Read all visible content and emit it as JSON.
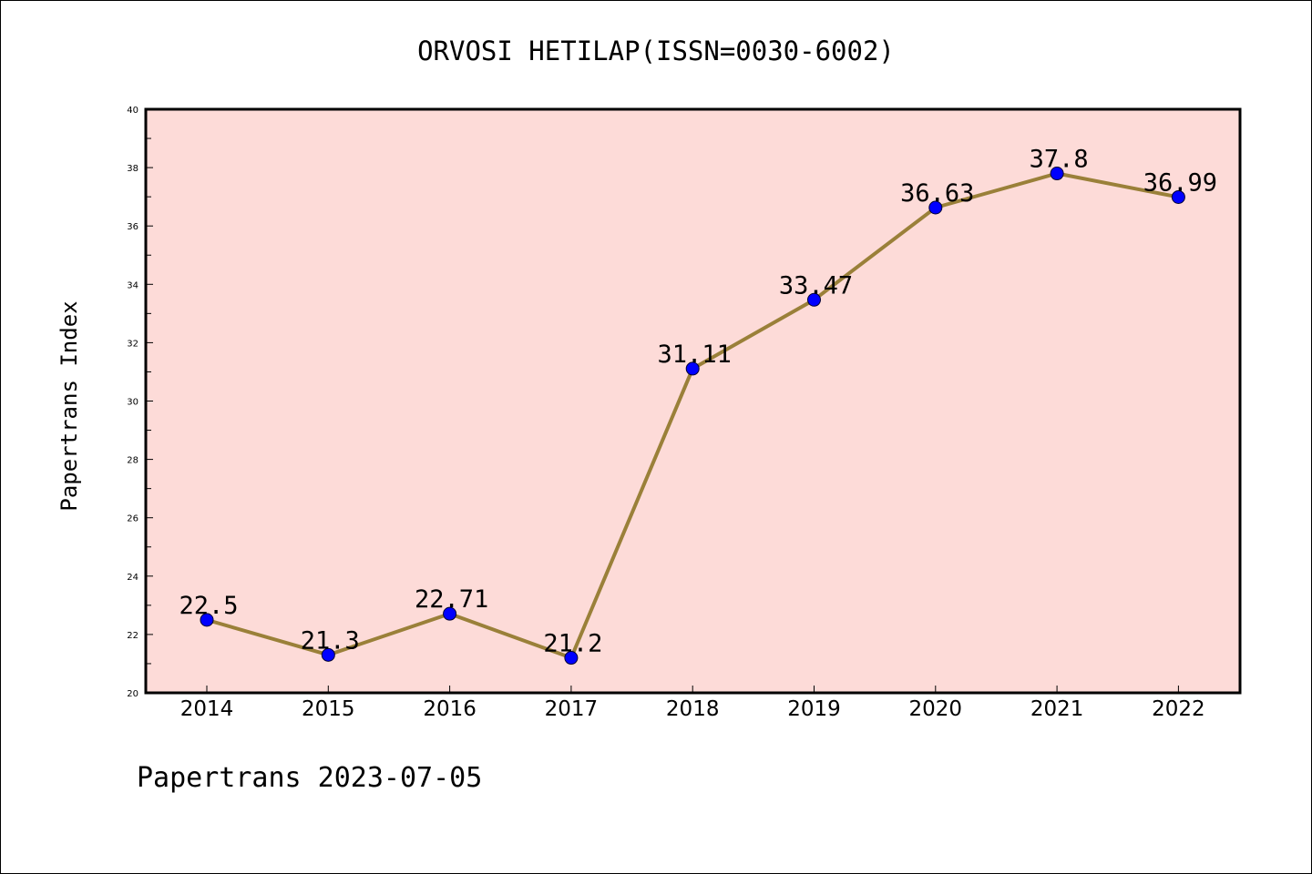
{
  "chart_data": {
    "type": "line",
    "title": "ORVOSI HETILAP(ISSN=0030-6002)",
    "xlabel": "",
    "ylabel": "Papertrans Index",
    "footer": "Papertrans 2023-07-05",
    "categories": [
      "2014",
      "2015",
      "2016",
      "2017",
      "2018",
      "2019",
      "2020",
      "2021",
      "2022"
    ],
    "values": [
      22.5,
      21.3,
      22.71,
      21.2,
      31.11,
      33.47,
      36.63,
      37.8,
      36.99
    ],
    "data_labels": [
      "22.5",
      "21.3",
      "22.71",
      "21.2",
      "31.11",
      "33.47",
      "36.63",
      "37.8",
      "36.99"
    ],
    "ylim": [
      20,
      40
    ],
    "yticks": [
      "20",
      "22",
      "24",
      "26",
      "28",
      "30",
      "32",
      "34",
      "36",
      "38",
      "40"
    ],
    "grid": false,
    "legend": "none",
    "colors": {
      "plot_background": "#fddbd8",
      "line": "#9a8039",
      "marker": "#0000ff",
      "axis": "#000000"
    }
  }
}
